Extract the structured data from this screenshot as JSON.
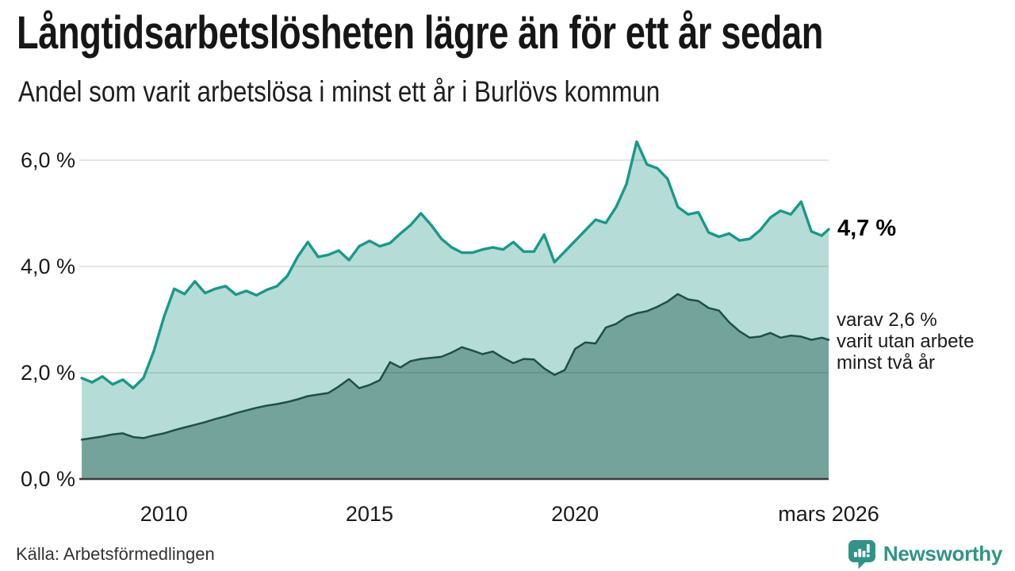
{
  "header": {
    "title": "Långtidsarbetslösheten lägre än för ett år sedan",
    "subtitle": "Andel som varit arbetslösa i minst ett år i Burlövs kommun"
  },
  "annotations": {
    "series1_latest": "4,7 %",
    "series2_note_lines": [
      "varav 2,6 %",
      "varit utan arbete",
      "minst två år"
    ]
  },
  "footer": {
    "source": "Källa: Arbetsförmedlingen",
    "brand": {
      "name": "Newsworthy",
      "icon": "bar-chart-speech-bubble-icon",
      "color": "#2f9488"
    }
  },
  "chart_data": {
    "type": "area",
    "title": "Långtidsarbetslösheten lägre än för ett år sedan",
    "subtitle": "Andel som varit arbetslösa i minst ett år i Burlövs kommun",
    "unit": "%",
    "grid": true,
    "xlim": [
      2007.94,
      2026.17
    ],
    "ylim": [
      0,
      6.6
    ],
    "x_ticks": [
      {
        "label": "2010",
        "x": 2010
      },
      {
        "label": "2015",
        "x": 2015
      },
      {
        "label": "2020",
        "x": 2020
      },
      {
        "label": "mars 2026",
        "x": 2026.17
      }
    ],
    "y_ticks": [
      {
        "label": "0,0 %",
        "value": 0
      },
      {
        "label": "2,0 %",
        "value": 2
      },
      {
        "label": "4,0 %",
        "value": 4
      },
      {
        "label": "6,0 %",
        "value": 6
      }
    ],
    "x": [
      2008.0,
      2008.25,
      2008.5,
      2008.75,
      2009.0,
      2009.25,
      2009.5,
      2009.75,
      2010.0,
      2010.25,
      2010.5,
      2010.75,
      2011.0,
      2011.25,
      2011.5,
      2011.75,
      2012.0,
      2012.25,
      2012.5,
      2012.75,
      2013.0,
      2013.25,
      2013.5,
      2013.75,
      2014.0,
      2014.25,
      2014.5,
      2014.75,
      2015.0,
      2015.25,
      2015.5,
      2015.75,
      2016.0,
      2016.25,
      2016.5,
      2016.75,
      2017.0,
      2017.25,
      2017.5,
      2017.75,
      2018.0,
      2018.25,
      2018.5,
      2018.75,
      2019.0,
      2019.25,
      2019.5,
      2019.75,
      2020.0,
      2020.25,
      2020.5,
      2020.75,
      2021.0,
      2021.25,
      2021.5,
      2021.75,
      2022.0,
      2022.25,
      2022.5,
      2022.75,
      2023.0,
      2023.25,
      2023.5,
      2023.75,
      2024.0,
      2024.25,
      2024.5,
      2024.75,
      2025.0,
      2025.25,
      2025.5,
      2025.75,
      2026.0,
      2026.17
    ],
    "series": [
      {
        "name": "Arbetslösa minst ett år",
        "latest_label": "4,7 %",
        "latest_value": 4.7,
        "line_color": "#18998a",
        "fill_color": "#b5dcd6",
        "values": [
          1.9,
          1.82,
          1.93,
          1.78,
          1.87,
          1.71,
          1.9,
          2.4,
          3.05,
          3.58,
          3.48,
          3.72,
          3.5,
          3.58,
          3.63,
          3.47,
          3.54,
          3.46,
          3.56,
          3.63,
          3.82,
          4.18,
          4.46,
          4.18,
          4.22,
          4.3,
          4.12,
          4.38,
          4.48,
          4.38,
          4.44,
          4.62,
          4.78,
          5.0,
          4.78,
          4.52,
          4.36,
          4.26,
          4.26,
          4.32,
          4.36,
          4.32,
          4.46,
          4.28,
          4.28,
          4.6,
          4.08,
          4.28,
          4.48,
          4.68,
          4.88,
          4.82,
          5.12,
          5.55,
          6.35,
          5.92,
          5.85,
          5.65,
          5.12,
          4.98,
          5.02,
          4.64,
          4.56,
          4.62,
          4.49,
          4.52,
          4.68,
          4.92,
          5.05,
          4.98,
          5.22,
          4.66,
          4.58,
          4.7
        ]
      },
      {
        "name": "Varav utan arbete minst två år",
        "latest_label": "2,6 %",
        "latest_value": 2.6,
        "line_color": "#1e4f49",
        "fill_color": "#73a39b",
        "values": [
          0.74,
          0.77,
          0.8,
          0.84,
          0.86,
          0.79,
          0.77,
          0.82,
          0.86,
          0.92,
          0.97,
          1.02,
          1.07,
          1.13,
          1.18,
          1.24,
          1.29,
          1.34,
          1.38,
          1.41,
          1.45,
          1.5,
          1.56,
          1.59,
          1.62,
          1.74,
          1.88,
          1.71,
          1.77,
          1.86,
          2.2,
          2.1,
          2.22,
          2.26,
          2.28,
          2.3,
          2.38,
          2.48,
          2.42,
          2.35,
          2.4,
          2.28,
          2.18,
          2.26,
          2.25,
          2.08,
          1.96,
          2.05,
          2.45,
          2.57,
          2.55,
          2.85,
          2.92,
          3.05,
          3.12,
          3.16,
          3.24,
          3.34,
          3.48,
          3.38,
          3.35,
          3.22,
          3.17,
          2.95,
          2.78,
          2.66,
          2.68,
          2.75,
          2.66,
          2.7,
          2.68,
          2.62,
          2.66,
          2.62
        ]
      }
    ],
    "legend_position": "right-of-line-annotations"
  }
}
